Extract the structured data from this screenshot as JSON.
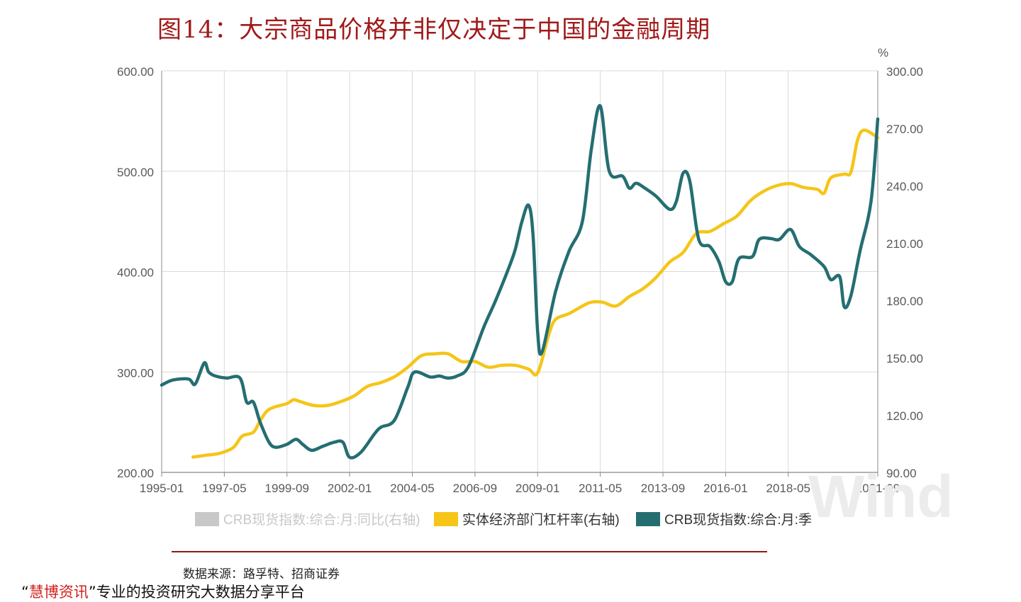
{
  "title": "图14：大宗商品价格并非仅决定于中国的金融周期",
  "source": "数据来源：路孚特、招商证券",
  "footer": {
    "open_quote": "“",
    "brand": "慧博资讯",
    "close_quote": "”",
    "slogan": "专业的投资研究大数据分享平台"
  },
  "watermark": "Wind",
  "colors": {
    "yoy_series": "#c8c8c8",
    "leverage_series": "#f5c518",
    "crb_series": "#246e72",
    "grid": "#d9d9d9",
    "axis_text": "#595959"
  },
  "chart_data": {
    "type": "line",
    "x_ticks": [
      "1995-01",
      "1997-05",
      "1999-09",
      "2002-01",
      "2004-05",
      "2006-09",
      "2009-01",
      "2011-05",
      "2013-09",
      "2016-01",
      "2018-05",
      "2021-09"
    ],
    "x_range": [
      "1995-01",
      "2021-09"
    ],
    "y_left": {
      "ticks": [
        "600.00",
        "500.00",
        "400.00",
        "300.00",
        "200.00"
      ],
      "range": [
        200,
        600
      ]
    },
    "y_right": {
      "ticks": [
        "300.00",
        "270.00",
        "240.00",
        "210.00",
        "180.00",
        "150.00",
        "120.00",
        "90.00"
      ],
      "range": [
        90,
        300
      ],
      "unit": "%"
    },
    "grid": true,
    "legend_position": "bottom",
    "series": [
      {
        "name": "CRB现货指数:综合:月:同比(右轴)",
        "axis": "right",
        "color": "#c8c8c8",
        "points": []
      },
      {
        "name": "实体经济部门杠杆率(右轴)",
        "axis": "right",
        "color": "#f5c518",
        "points": [
          [
            "1996-03",
            98
          ],
          [
            "1996-09",
            99
          ],
          [
            "1997-03",
            100
          ],
          [
            "1997-09",
            103
          ],
          [
            "1998-01",
            109
          ],
          [
            "1998-06",
            111
          ],
          [
            "1998-09",
            117
          ],
          [
            "1998-12",
            122
          ],
          [
            "1999-03",
            124
          ],
          [
            "1999-09",
            126
          ],
          [
            "1999-12",
            128
          ],
          [
            "2000-03",
            127
          ],
          [
            "2000-09",
            125
          ],
          [
            "2001-03",
            125
          ],
          [
            "2001-09",
            127
          ],
          [
            "2002-03",
            130
          ],
          [
            "2002-09",
            135
          ],
          [
            "2003-03",
            137
          ],
          [
            "2003-09",
            140
          ],
          [
            "2004-03",
            145
          ],
          [
            "2004-09",
            151
          ],
          [
            "2005-03",
            152
          ],
          [
            "2005-09",
            152
          ],
          [
            "2006-03",
            148
          ],
          [
            "2006-09",
            148
          ],
          [
            "2007-03",
            145
          ],
          [
            "2007-09",
            146
          ],
          [
            "2008-03",
            146
          ],
          [
            "2008-09",
            144
          ],
          [
            "2009-01",
            142
          ],
          [
            "2009-06",
            162
          ],
          [
            "2009-09",
            170
          ],
          [
            "2010-03",
            173
          ],
          [
            "2010-09",
            177
          ],
          [
            "2011-01",
            179
          ],
          [
            "2011-06",
            179
          ],
          [
            "2011-12",
            177
          ],
          [
            "2012-06",
            182
          ],
          [
            "2012-12",
            186
          ],
          [
            "2013-06",
            192
          ],
          [
            "2013-12",
            200
          ],
          [
            "2014-06",
            205
          ],
          [
            "2014-12",
            215
          ],
          [
            "2015-06",
            216
          ],
          [
            "2015-12",
            220
          ],
          [
            "2016-06",
            224
          ],
          [
            "2016-12",
            232
          ],
          [
            "2017-06",
            237
          ],
          [
            "2017-12",
            240
          ],
          [
            "2018-06",
            241
          ],
          [
            "2018-12",
            239
          ],
          [
            "2019-06",
            238
          ],
          [
            "2019-09",
            236
          ],
          [
            "2019-12",
            244
          ],
          [
            "2020-06",
            246
          ],
          [
            "2020-09",
            247
          ],
          [
            "2020-12",
            264
          ],
          [
            "2021-03",
            269
          ],
          [
            "2021-09",
            265
          ]
        ]
      },
      {
        "name": "CRB现货指数:综合:月:季",
        "axis": "left",
        "color": "#246e72",
        "points": [
          [
            "1995-01",
            287
          ],
          [
            "1995-06",
            292
          ],
          [
            "1996-01",
            293
          ],
          [
            "1996-04",
            288
          ],
          [
            "1996-08",
            309
          ],
          [
            "1996-10",
            300
          ],
          [
            "1997-01",
            296
          ],
          [
            "1997-06",
            294
          ],
          [
            "1997-12",
            294
          ],
          [
            "1998-03",
            270
          ],
          [
            "1998-06",
            270
          ],
          [
            "1998-09",
            250
          ],
          [
            "1999-01",
            230
          ],
          [
            "1999-04",
            225
          ],
          [
            "1999-09",
            228
          ],
          [
            "2000-01",
            233
          ],
          [
            "2000-04",
            228
          ],
          [
            "2000-08",
            222
          ],
          [
            "2001-01",
            226
          ],
          [
            "2001-06",
            230
          ],
          [
            "2001-10",
            230
          ],
          [
            "2002-01",
            215
          ],
          [
            "2002-06",
            220
          ],
          [
            "2002-12",
            238
          ],
          [
            "2003-03",
            245
          ],
          [
            "2003-09",
            252
          ],
          [
            "2004-03",
            285
          ],
          [
            "2004-06",
            300
          ],
          [
            "2005-01",
            295
          ],
          [
            "2005-05",
            296
          ],
          [
            "2005-09",
            294
          ],
          [
            "2006-01",
            296
          ],
          [
            "2006-06",
            305
          ],
          [
            "2007-01",
            345
          ],
          [
            "2007-06",
            370
          ],
          [
            "2007-12",
            403
          ],
          [
            "2008-03",
            422
          ],
          [
            "2008-06",
            450
          ],
          [
            "2008-09",
            466
          ],
          [
            "2008-11",
            435
          ],
          [
            "2009-01",
            340
          ],
          [
            "2009-03",
            320
          ],
          [
            "2009-09",
            380
          ],
          [
            "2010-03",
            420
          ],
          [
            "2010-09",
            450
          ],
          [
            "2011-01",
            522
          ],
          [
            "2011-05",
            565
          ],
          [
            "2011-09",
            500
          ],
          [
            "2012-03",
            495
          ],
          [
            "2012-06",
            483
          ],
          [
            "2012-09",
            488
          ],
          [
            "2013-01",
            483
          ],
          [
            "2013-06",
            475
          ],
          [
            "2013-12",
            462
          ],
          [
            "2014-03",
            470
          ],
          [
            "2014-06",
            498
          ],
          [
            "2014-09",
            490
          ],
          [
            "2015-01",
            432
          ],
          [
            "2015-06",
            425
          ],
          [
            "2015-10",
            410
          ],
          [
            "2016-01",
            390
          ],
          [
            "2016-04",
            390
          ],
          [
            "2016-07",
            413
          ],
          [
            "2017-01",
            415
          ],
          [
            "2017-04",
            432
          ],
          [
            "2017-09",
            433
          ],
          [
            "2018-01",
            432
          ],
          [
            "2018-06",
            442
          ],
          [
            "2018-10",
            425
          ],
          [
            "2019-03",
            417
          ],
          [
            "2019-09",
            405
          ],
          [
            "2019-12",
            392
          ],
          [
            "2020-04",
            395
          ],
          [
            "2020-06",
            365
          ],
          [
            "2020-09",
            376
          ],
          [
            "2021-01",
            420
          ],
          [
            "2021-06",
            470
          ],
          [
            "2021-09",
            552
          ]
        ]
      }
    ]
  }
}
